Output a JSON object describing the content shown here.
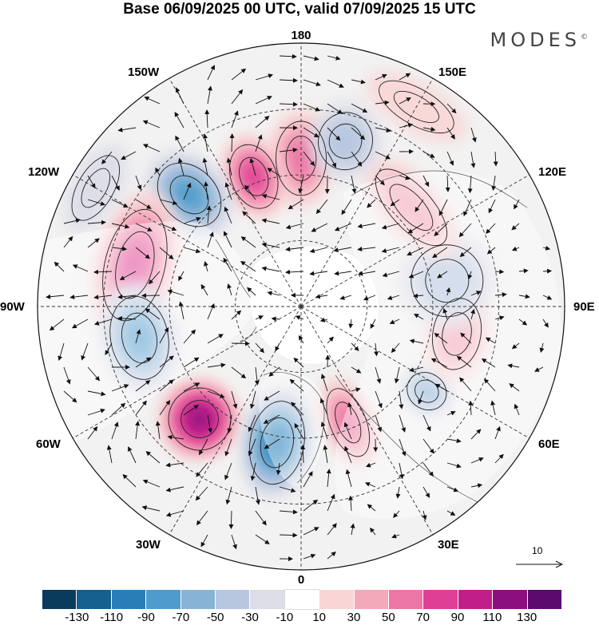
{
  "header": {
    "title": "Base 06/09/2025 00 UTC, valid 07/09/2025 15 UTC",
    "brand": "MODES",
    "brand_mark": "©"
  },
  "map": {
    "projection": "north polar stereographic",
    "colors": {
      "ocean_bg": "#f2f2f2",
      "land": "#ffffff",
      "grid": "#333333",
      "arrow": "#111111"
    },
    "longitude_labels": {
      "lon_180": "180",
      "lon_150w": "150W",
      "lon_150e": "150E",
      "lon_120w": "120W",
      "lon_120e": "120E",
      "lon_90w": "90W",
      "lon_90e": "90E",
      "lon_60w": "60W",
      "lon_60e": "60E",
      "lon_30w": "30W",
      "lon_30e": "30E",
      "lon_0": "0"
    },
    "anomaly_centers": [
      {
        "id": "center-180",
        "lon": 180,
        "colat": 45,
        "value": 55,
        "rx": 42,
        "ry": 62
      },
      {
        "id": "center-160w",
        "lon": -160,
        "colat": 42,
        "value": 75,
        "rx": 38,
        "ry": 55
      },
      {
        "id": "center-135w",
        "lon": -135,
        "colat": 48,
        "value": -75,
        "rx": 45,
        "ry": 60
      },
      {
        "id": "center-105w",
        "lon": -104,
        "colat": 52,
        "value": 65,
        "rx": 95,
        "ry": 50
      },
      {
        "id": "center-80w",
        "lon": -79,
        "colat": 50,
        "value": -80,
        "rx": 70,
        "ry": 48
      },
      {
        "id": "center-40w",
        "lon": -42,
        "colat": 46,
        "value": 105,
        "rx": 52,
        "ry": 52
      },
      {
        "id": "center-10w",
        "lon": -10,
        "colat": 42,
        "value": -90,
        "rx": 45,
        "ry": 70
      },
      {
        "id": "center-25e",
        "lon": 22,
        "colat": 38,
        "value": 55,
        "rx": 30,
        "ry": 60
      },
      {
        "id": "center-55e",
        "lon": 56,
        "colat": 46,
        "value": -50,
        "rx": 30,
        "ry": 34
      },
      {
        "id": "center-80e",
        "lon": 80,
        "colat": 48,
        "value": 40,
        "rx": 60,
        "ry": 40
      },
      {
        "id": "center-100e",
        "lon": 100,
        "colat": 45,
        "value": -30,
        "rx": 60,
        "ry": 60
      },
      {
        "id": "center-135e",
        "lon": 132,
        "colat": 45,
        "value": 40,
        "rx": 80,
        "ry": 35
      },
      {
        "id": "center-165e",
        "lon": 165,
        "colat": 52,
        "value": -25,
        "rx": 45,
        "ry": 48
      },
      {
        "id": "center-150e-south",
        "lon": 150,
        "colat": 70,
        "value": 20,
        "rx": 70,
        "ry": 30
      },
      {
        "id": "center-120w-south",
        "lon": -120,
        "colat": 72,
        "value": -20,
        "rx": 60,
        "ry": 30
      }
    ],
    "vector_reference": {
      "label": "10",
      "magnitude": 10
    }
  },
  "colorbar": {
    "colors": [
      "#0b3b5c",
      "#155f8e",
      "#2a7eb8",
      "#4e9bcc",
      "#87b3d6",
      "#b7c7e0",
      "#dddde8",
      "#ffffff",
      "#f9d6d6",
      "#f4a9ba",
      "#ec76a5",
      "#df3f94",
      "#c01e88",
      "#8c0f80",
      "#5b0b6e"
    ],
    "ticks": [
      "-130",
      "-110",
      "-90",
      "-70",
      "-50",
      "-30",
      "-10",
      "10",
      "30",
      "50",
      "70",
      "90",
      "110",
      "130"
    ]
  }
}
